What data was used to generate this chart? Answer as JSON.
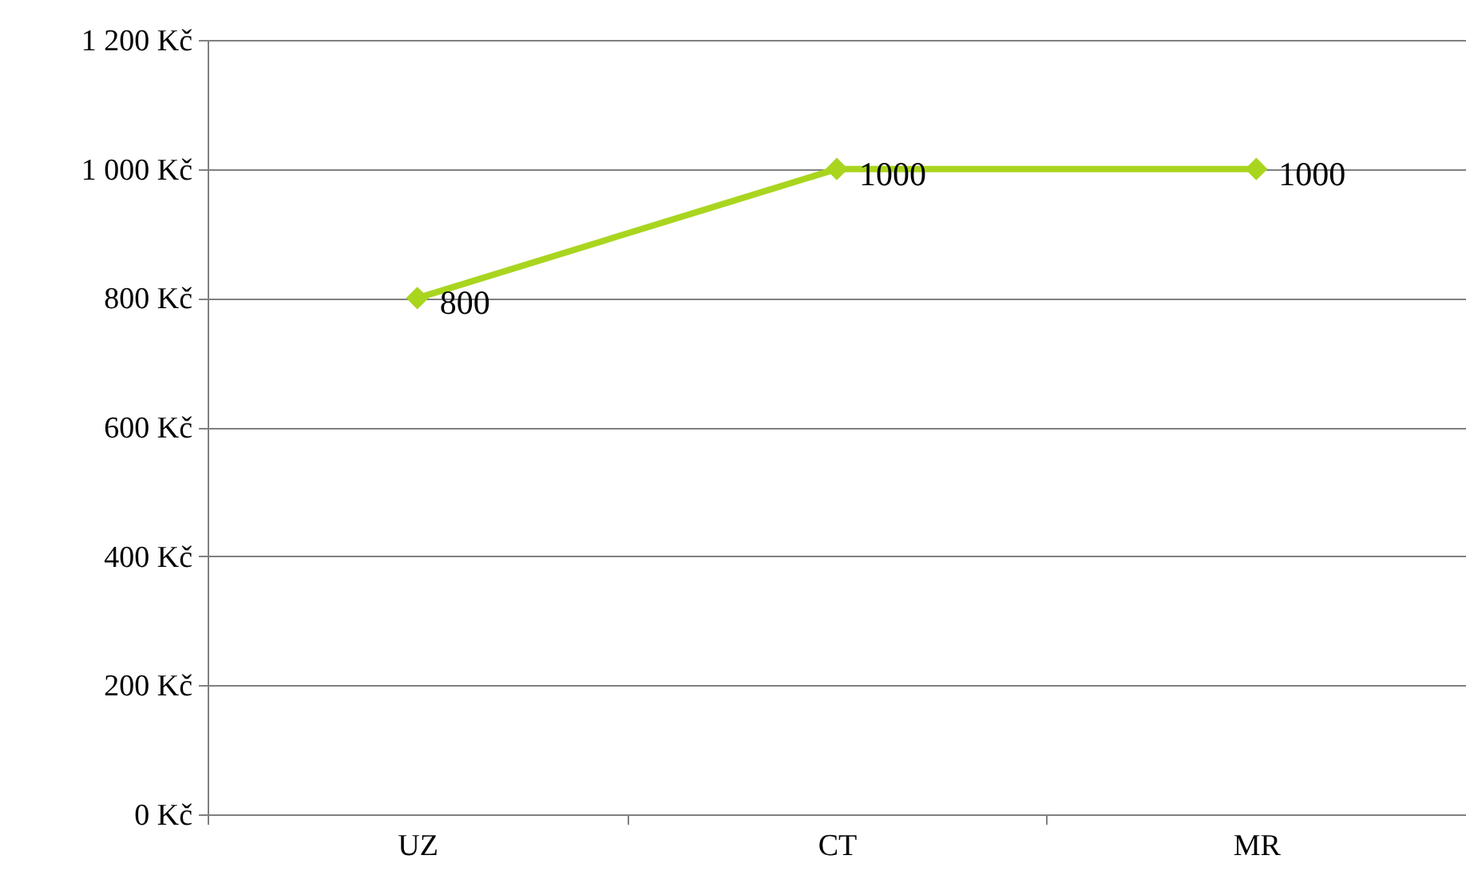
{
  "chart_data": {
    "type": "line",
    "categories": [
      "UZ",
      "CT",
      "MR"
    ],
    "series": [
      {
        "color": "#a9d51f",
        "values": [
          800,
          1000,
          1000
        ]
      }
    ],
    "ylim": [
      0,
      1200
    ],
    "yticks": [
      {
        "value": 0,
        "label": "0 Kč"
      },
      {
        "value": 200,
        "label": "200 Kč"
      },
      {
        "value": 400,
        "label": "400 Kč"
      },
      {
        "value": 600,
        "label": "600 Kč"
      },
      {
        "value": 800,
        "label": "800 Kč"
      },
      {
        "value": 1000,
        "label": "1 000 Kč"
      },
      {
        "value": 1200,
        "label": "1 200 Kč"
      }
    ],
    "grid": "y",
    "marker": "diamond",
    "line_style": "solid",
    "data_labels": true,
    "legend": false
  }
}
